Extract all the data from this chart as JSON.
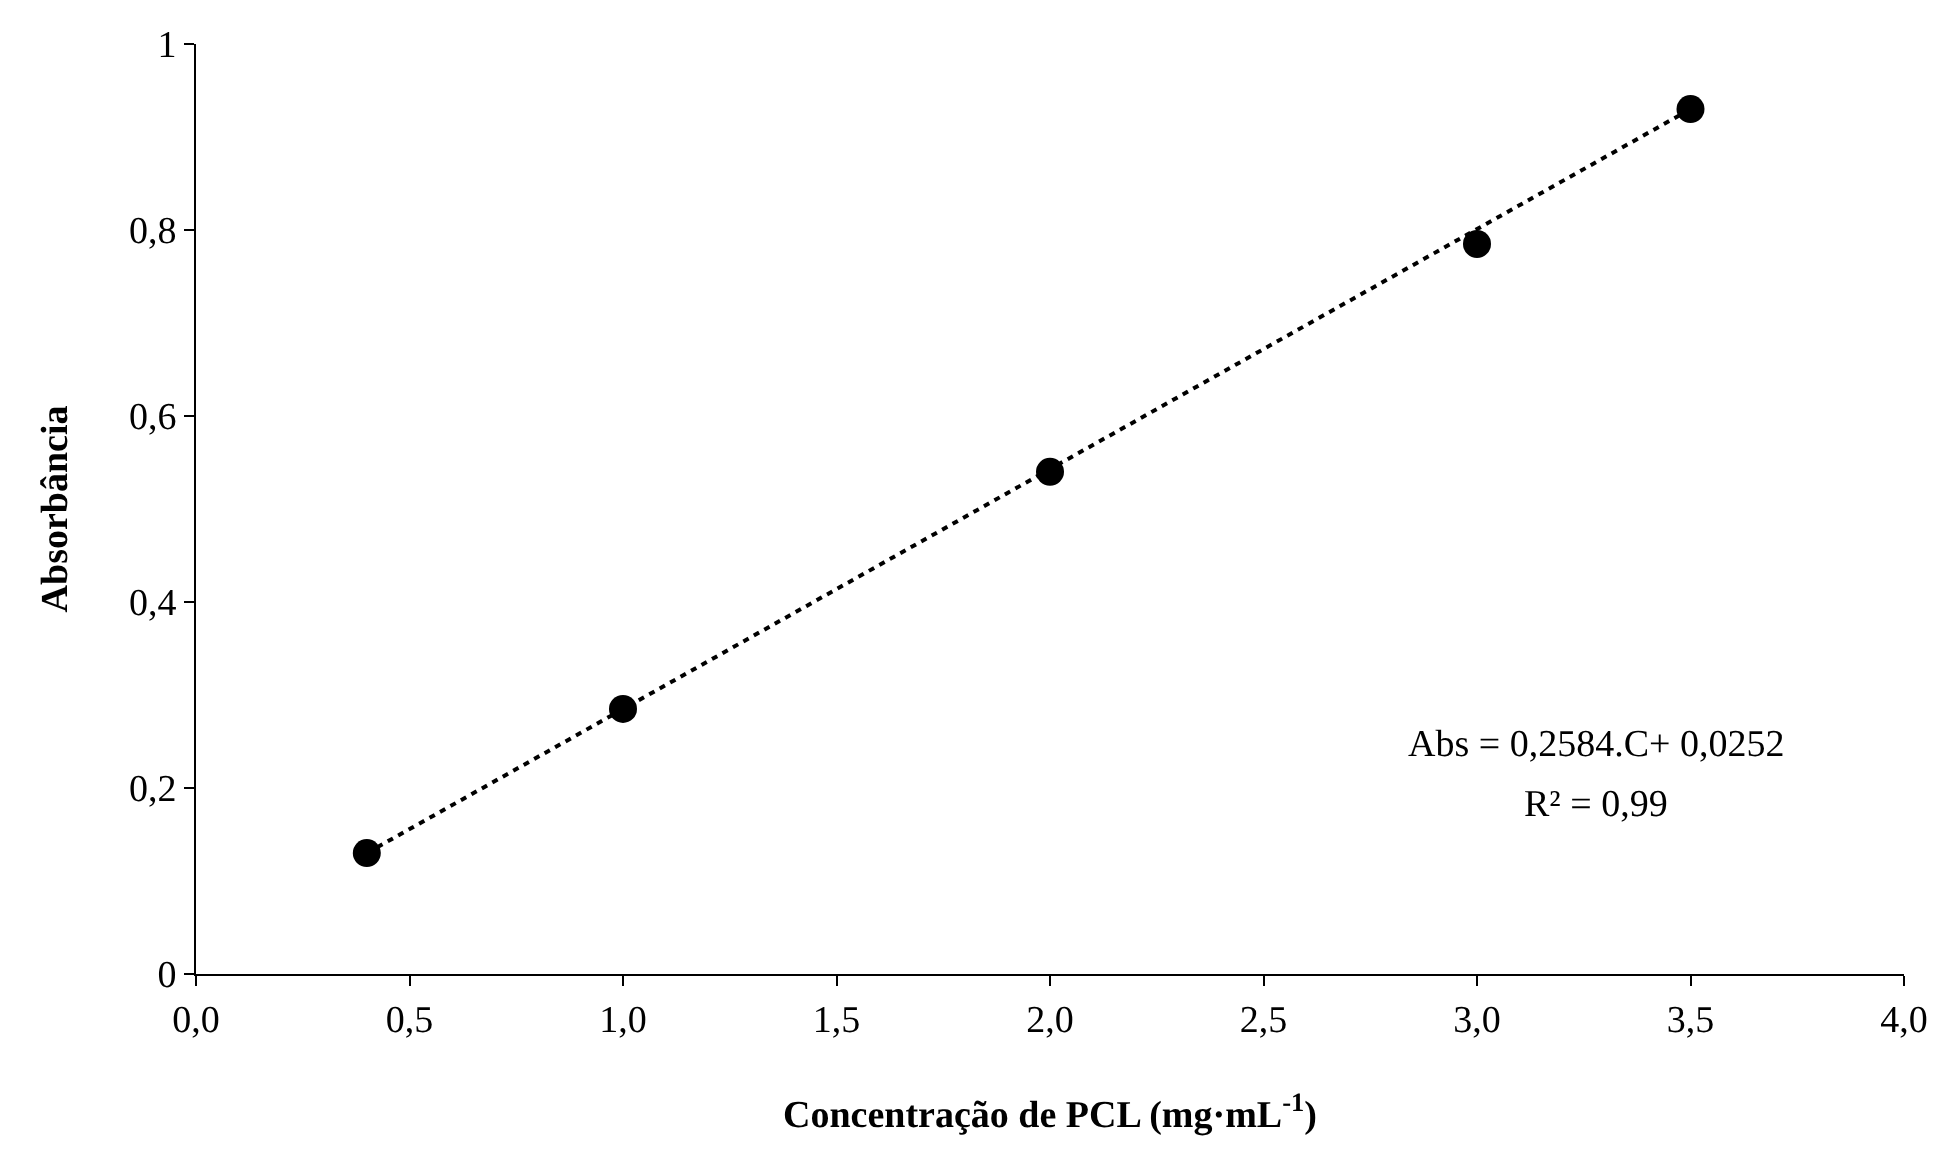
{
  "chart_data": {
    "type": "scatter",
    "xlabel": "Concentração de PCL (mg·mL$^{-1}$)",
    "ylabel": "Absorbância",
    "series": [
      {
        "color": "#000000",
        "marker": "circle",
        "x": [
          0.4,
          1.0,
          2.0,
          3.0,
          3.5
        ],
        "values": [
          0.13,
          0.285,
          0.54,
          0.785,
          0.93
        ]
      },
      {
        "type": "line",
        "color": "#000000",
        "line_style": "dotted",
        "marker": "none",
        "x": [
          0.4,
          3.5
        ],
        "values": [
          0.13,
          0.93
        ]
      }
    ],
    "xlim": [
      0,
      4
    ],
    "ylim": [
      0,
      1
    ],
    "xticks": [
      {
        "value": 0,
        "label": "0,0"
      },
      {
        "value": 0.5,
        "label": "0,5"
      },
      {
        "value": 1,
        "label": "1,0"
      },
      {
        "value": 1.5,
        "label": "1,5"
      },
      {
        "value": 2,
        "label": "2,0"
      },
      {
        "value": 2.5,
        "label": "2,5"
      },
      {
        "value": 3,
        "label": "3,0"
      },
      {
        "value": 3.5,
        "label": "3,5"
      },
      {
        "value": 4,
        "label": "4,0"
      }
    ],
    "yticks": [
      0,
      {
        "value": 0.2,
        "label": "0,2"
      },
      {
        "value": 0.4,
        "label": "0,4"
      },
      {
        "value": 0.6,
        "label": "0,6"
      },
      {
        "value": 0.8,
        "label": "0,8"
      },
      1
    ],
    "annotations": [
      "Abs = 0,2584.C+ 0,0252",
      "R² = 0,99"
    ]
  }
}
